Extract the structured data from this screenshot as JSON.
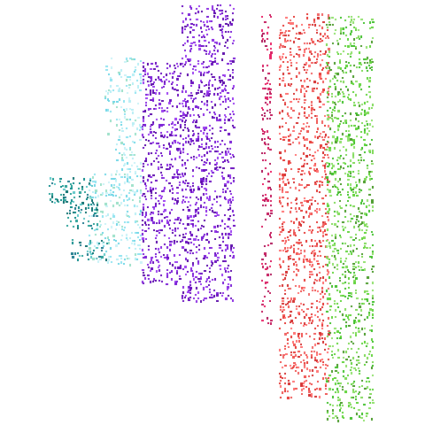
{
  "background": "#ffffff",
  "clusters": [
    {
      "name": "teal-cluster-left",
      "colors": [
        "#0e8a8a",
        "#2aa198",
        "#1f7a8c",
        "#5cc6c6",
        "#0b6e6e"
      ],
      "density": 0.35
    },
    {
      "name": "cyan-cluster-left",
      "colors": [
        "#8fe3f0",
        "#b8eef5",
        "#6fd6e6",
        "#c9f2f7",
        "#9be0c8"
      ],
      "density": 0.28
    },
    {
      "name": "purple-cluster-mid",
      "colors": [
        "#7a1fd6",
        "#6a0fbf",
        "#8b2be2",
        "#9a3df0",
        "#5a0aa8"
      ],
      "density": 0.33
    },
    {
      "name": "crimson-strip",
      "colors": [
        "#c2185b",
        "#d81b60",
        "#ad1457",
        "#e91e63"
      ],
      "density": 0.3
    },
    {
      "name": "red-cluster-right",
      "colors": [
        "#e53935",
        "#ef5350",
        "#f06262",
        "#d32f2f",
        "#ff7070"
      ],
      "density": 0.3
    },
    {
      "name": "green-cluster-right",
      "colors": [
        "#5fd33a",
        "#7ed957",
        "#3fbf2a",
        "#4a9a2a",
        "#8ee06a"
      ],
      "density": 0.3
    }
  ]
}
